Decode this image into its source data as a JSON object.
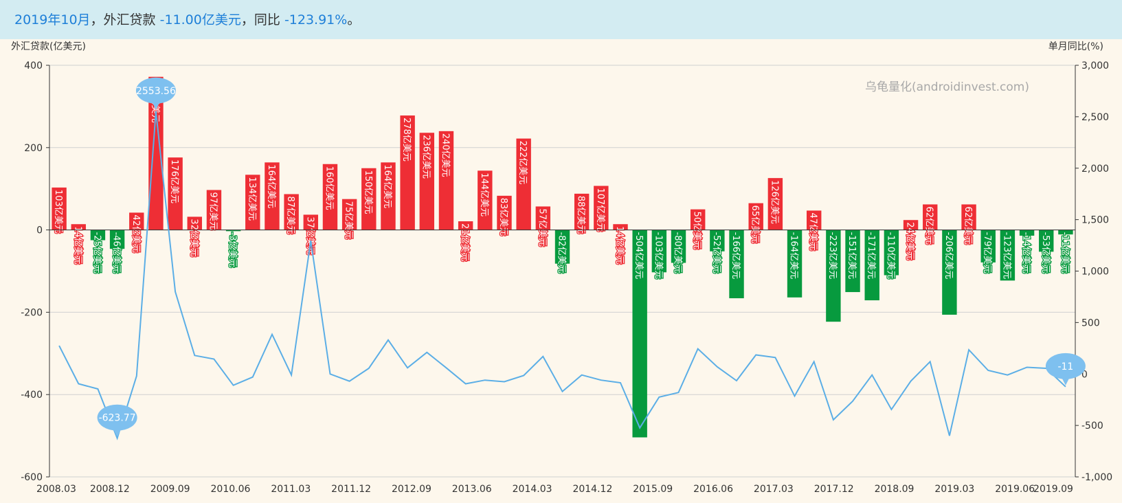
{
  "header": {
    "date": "2019年10月",
    "sep1": "，",
    "metric": "外汇贷款",
    "value": "-11.00亿美元",
    "sep2": "，",
    "yoy_label": "同比",
    "yoy_value": "-123.91%",
    "end": "。"
  },
  "watermark": "乌龟量化(androidinvest.com)",
  "colors": {
    "positive": "#ee2e35",
    "negative": "#079a3e",
    "line": "#5baee6",
    "bubble": "#7ec0ef"
  },
  "chart_data": {
    "type": "bar+line",
    "left_axis_title": "外汇贷款(亿美元)",
    "right_axis_title": "单月同比(%)",
    "left_ylim": [
      -600,
      400
    ],
    "left_ticks": [
      "400",
      "200",
      "0",
      "-200",
      "-400",
      "-600"
    ],
    "right_ylim": [
      -1000,
      3000
    ],
    "right_ticks": [
      "3,000",
      "2,500",
      "2,000",
      "1,500",
      "1,000",
      "500",
      "0",
      "-500",
      "-1,000"
    ],
    "x_tick_labels": [
      "2008.03",
      "2008.12",
      "2009.09",
      "2010.06",
      "2011.03",
      "2011.12",
      "2012.09",
      "2013.06",
      "2014.03",
      "2014.12",
      "2015.09",
      "2016.06",
      "2017.03",
      "2017.12",
      "2018.09",
      "2019.03",
      "2019.06",
      "2019.09"
    ],
    "unit_suffix": "亿美元",
    "bars": [
      103,
      14,
      -25,
      -46,
      42,
      372,
      176,
      32,
      97,
      -3,
      134,
      164,
      87,
      37,
      160,
      75,
      150,
      164,
      278,
      236,
      240,
      21,
      144,
      83,
      222,
      57,
      -82,
      88,
      107,
      14,
      -504,
      -103,
      -80,
      50,
      -52,
      -166,
      65,
      126,
      -164,
      47,
      -223,
      -151,
      -171,
      -110,
      24,
      62,
      -206,
      62,
      -79,
      -123,
      -14,
      -53,
      -11
    ],
    "yoy": [
      275,
      -95,
      -145,
      -624,
      -20,
      2554,
      800,
      180,
      145,
      -110,
      -30,
      385,
      -10,
      1295,
      0,
      -70,
      55,
      330,
      60,
      210,
      60,
      -95,
      -60,
      -75,
      -15,
      170,
      -170,
      -10,
      -60,
      -85,
      -524,
      -225,
      -180,
      245,
      70,
      -65,
      185,
      160,
      -215,
      120,
      -445,
      -265,
      -10,
      -345,
      -70,
      120,
      -600,
      235,
      35,
      -10,
      65,
      55,
      -124
    ],
    "annotations": {
      "max": {
        "index": 5,
        "label": "2553.56"
      },
      "min": {
        "index": 3,
        "label": "-623.77"
      },
      "last": {
        "index": 52,
        "label": "-11"
      }
    }
  }
}
